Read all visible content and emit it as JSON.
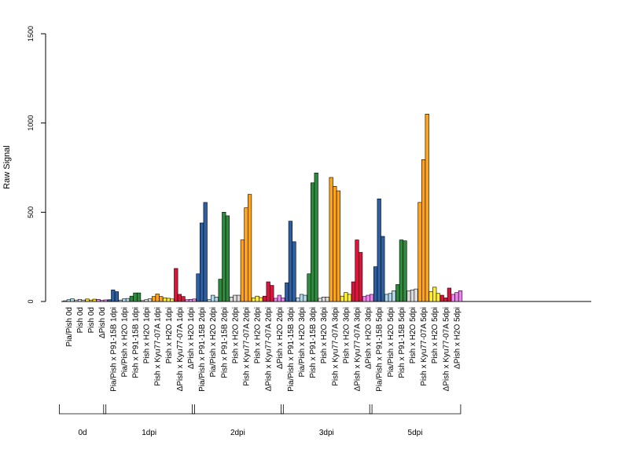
{
  "chart_data": {
    "type": "bar",
    "title": "",
    "xlabel": "",
    "ylabel": "Raw Signal",
    "ylim": [
      0,
      1500
    ],
    "y_ticks": [
      "0",
      "500",
      "1000",
      "1500"
    ],
    "grid": false,
    "legend": "none",
    "categories": [
      {
        "label": "Pia/Pish 0d",
        "group": "0d",
        "color": "#add8e6",
        "values": [
          4,
          10,
          15
        ]
      },
      {
        "label": "Pish 0d",
        "group": "0d",
        "color": "#d8d8d8",
        "values": [
          8,
          12,
          8
        ]
      },
      {
        "label": "Pish 0d",
        "group": "0d",
        "color": "#ffd700",
        "values": [
          14,
          8,
          13
        ]
      },
      {
        "label": "ΔPish 0d",
        "group": "0d",
        "color": "#ee82ee",
        "values": [
          12,
          6,
          9
        ]
      },
      {
        "label": "Pia/Pish x P91-15B 1dpi",
        "group": "1dpi",
        "color": "#2d5fa3",
        "values": [
          10,
          65,
          55
        ]
      },
      {
        "label": "Pia/Pish x H2O 1dpi",
        "group": "1dpi",
        "color": "#b0d8ea",
        "values": [
          8,
          15,
          17
        ]
      },
      {
        "label": "Pish x P91-15B 1dpi",
        "group": "1dpi",
        "color": "#2e8b3e",
        "values": [
          30,
          48,
          48
        ]
      },
      {
        "label": "Pish x H2O 1dpi",
        "group": "1dpi",
        "color": "#dcdcdc",
        "values": [
          5,
          10,
          15
        ]
      },
      {
        "label": "Pish x Kyu77-07A 1dpi",
        "group": "1dpi",
        "color": "#ffa31a",
        "values": [
          28,
          42,
          28
        ]
      },
      {
        "label": "Pish x H2O 1dpi",
        "group": "1dpi",
        "color": "#ffee33",
        "values": [
          20,
          18,
          14
        ]
      },
      {
        "label": "ΔPish x Kyu77-07A 1dpi",
        "group": "1dpi",
        "color": "#dc143c",
        "values": [
          185,
          40,
          28
        ]
      },
      {
        "label": "ΔPish x H2O 1dpi",
        "group": "1dpi",
        "color": "#ee82ee",
        "values": [
          10,
          12,
          14
        ]
      },
      {
        "label": "Pia/Pish x P91-15B 2dpi",
        "group": "2dpi",
        "color": "#2d5fa3",
        "values": [
          155,
          440,
          555
        ]
      },
      {
        "label": "Pia/Pish x H2O 2dpi",
        "group": "2dpi",
        "color": "#b0d8ea",
        "values": [
          10,
          35,
          25
        ]
      },
      {
        "label": "Pish x P91-15B 2dpi",
        "group": "2dpi",
        "color": "#2e8b3e",
        "values": [
          125,
          500,
          480
        ]
      },
      {
        "label": "Pish x H2O 2dpi",
        "group": "2dpi",
        "color": "#dcdcdc",
        "values": [
          25,
          35,
          35
        ]
      },
      {
        "label": "Pish x Kyu77-07A 2dpi",
        "group": "2dpi",
        "color": "#ffa31a",
        "values": [
          345,
          525,
          600
        ]
      },
      {
        "label": "Pish x H2O 2dpi",
        "group": "2dpi",
        "color": "#ffee33",
        "values": [
          20,
          30,
          22
        ]
      },
      {
        "label": "ΔPish x Kyu77-07A 2dpi",
        "group": "2dpi",
        "color": "#dc143c",
        "values": [
          30,
          110,
          90
        ]
      },
      {
        "label": "ΔPish x H2O 2dpi",
        "group": "2dpi",
        "color": "#ee82ee",
        "values": [
          18,
          35,
          20
        ]
      },
      {
        "label": "Pia/Pish x P91-15B 3dpi",
        "group": "3dpi",
        "color": "#2d5fa3",
        "values": [
          105,
          450,
          335
        ]
      },
      {
        "label": "Pia/Pish x H2O 3dpi",
        "group": "3dpi",
        "color": "#b0d8ea",
        "values": [
          20,
          40,
          35
        ]
      },
      {
        "label": "Pish x P91-15B 3dpi",
        "group": "3dpi",
        "color": "#2e8b3e",
        "values": [
          155,
          665,
          720
        ]
      },
      {
        "label": "Pish x H2O 3dpi",
        "group": "3dpi",
        "color": "#dcdcdc",
        "values": [
          18,
          25,
          25
        ]
      },
      {
        "label": "Pish x Kyu77-07A 3dpi",
        "group": "3dpi",
        "color": "#ffa31a",
        "values": [
          695,
          645,
          620
        ]
      },
      {
        "label": "Pish x H2O 3dpi",
        "group": "3dpi",
        "color": "#ffee33",
        "values": [
          30,
          50,
          40
        ]
      },
      {
        "label": "ΔPish x Kyu77-07A 3dpi",
        "group": "3dpi",
        "color": "#dc143c",
        "values": [
          110,
          345,
          275
        ]
      },
      {
        "label": "ΔPish x H2O 3dpi",
        "group": "3dpi",
        "color": "#ee82ee",
        "values": [
          28,
          35,
          40
        ]
      },
      {
        "label": "Pia/Pish x P91-15B 5dpi",
        "group": "5dpi",
        "color": "#2d5fa3",
        "values": [
          195,
          575,
          365
        ]
      },
      {
        "label": "Pia/Pish x H2O 5dpi",
        "group": "5dpi",
        "color": "#b0d8ea",
        "values": [
          40,
          45,
          60
        ]
      },
      {
        "label": "Pish x P91-15B 5dpi",
        "group": "5dpi",
        "color": "#2e8b3e",
        "values": [
          95,
          345,
          340
        ]
      },
      {
        "label": "Pish x H2O 5dpi",
        "group": "5dpi",
        "color": "#dcdcdc",
        "values": [
          60,
          65,
          70
        ]
      },
      {
        "label": "Pish x Kyu77-07A 5dpi",
        "group": "5dpi",
        "color": "#ffa31a",
        "values": [
          555,
          795,
          1050
        ]
      },
      {
        "label": "Pish x H2O 5dpi",
        "group": "5dpi",
        "color": "#ffee33",
        "values": [
          55,
          80,
          45
        ]
      },
      {
        "label": "ΔPish x Kyu77-07A 5dpi",
        "group": "5dpi",
        "color": "#dc143c",
        "values": [
          35,
          20,
          75
        ]
      },
      {
        "label": "ΔPish x H2O 5dpi",
        "group": "5dpi",
        "color": "#ee82ee",
        "values": [
          40,
          50,
          60
        ]
      }
    ],
    "groups": [
      "0d",
      "1dpi",
      "2dpi",
      "3dpi",
      "5dpi"
    ]
  }
}
